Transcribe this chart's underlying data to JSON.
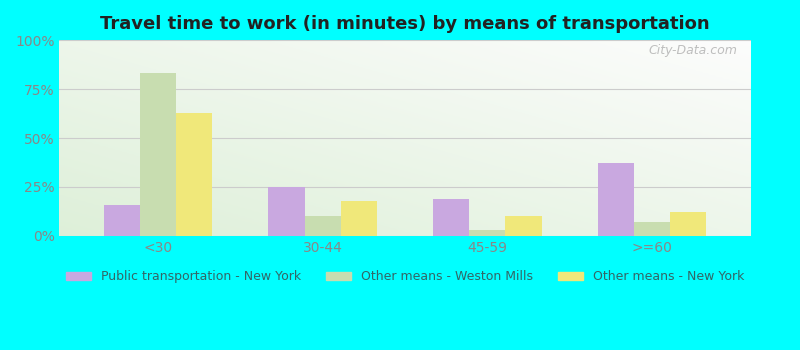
{
  "title": "Travel time to work (in minutes) by means of transportation",
  "categories": [
    "<30",
    "30-44",
    "45-59",
    ">=60"
  ],
  "series": {
    "Public transportation - New York": [
      16,
      25,
      19,
      37
    ],
    "Other means - Weston Mills": [
      83,
      10,
      3,
      7
    ],
    "Other means - New York": [
      63,
      18,
      10,
      12
    ]
  },
  "colors": {
    "Public transportation - New York": "#c9a8e0",
    "Other means - Weston Mills": "#c8ddb0",
    "Other means - New York": "#f0e87a"
  },
  "bar_width": 0.22,
  "ylim": [
    0,
    100
  ],
  "yticks": [
    0,
    25,
    50,
    75,
    100
  ],
  "ytick_labels": [
    "0%",
    "25%",
    "50%",
    "75%",
    "100%"
  ],
  "background_color": "#00ffff",
  "grid_color": "#cccccc",
  "title_color": "#222222",
  "title_fontsize": 13,
  "legend_text_color": "#336666",
  "tick_label_color": "#888888",
  "watermark": "City-Data.com"
}
